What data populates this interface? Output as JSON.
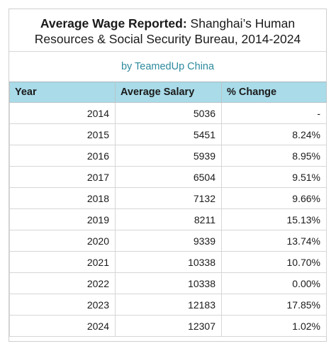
{
  "header": {
    "title_bold": "Average Wage Reported:",
    "title_rest_line1": " Shanghai’s Human",
    "title_line2": "Resources & Social Security Bureau, 2014-2024",
    "subtitle": "by TeamedUp China"
  },
  "colors": {
    "header_bg": "#a9dbe9",
    "subtitle_text": "#2e8a9e"
  },
  "chart_data": {
    "type": "table",
    "title": "Average Wage Reported: Shanghai’s Human Resources & Social Security Bureau, 2014-2024",
    "subtitle": "by TeamedUp China",
    "columns": [
      "Year",
      "Average Salary",
      "% Change"
    ],
    "rows": [
      [
        "2014",
        "5036",
        "-"
      ],
      [
        "2015",
        "5451",
        "8.24%"
      ],
      [
        "2016",
        "5939",
        "8.95%"
      ],
      [
        "2017",
        "6504",
        "9.51%"
      ],
      [
        "2018",
        "7132",
        "9.66%"
      ],
      [
        "2019",
        "8211",
        "15.13%"
      ],
      [
        "2020",
        "9339",
        "13.74%"
      ],
      [
        "2021",
        "10338",
        "10.70%"
      ],
      [
        "2022",
        "10338",
        "0.00%"
      ],
      [
        "2023",
        "12183",
        "17.85%"
      ],
      [
        "2024",
        "12307",
        "1.02%"
      ]
    ]
  }
}
